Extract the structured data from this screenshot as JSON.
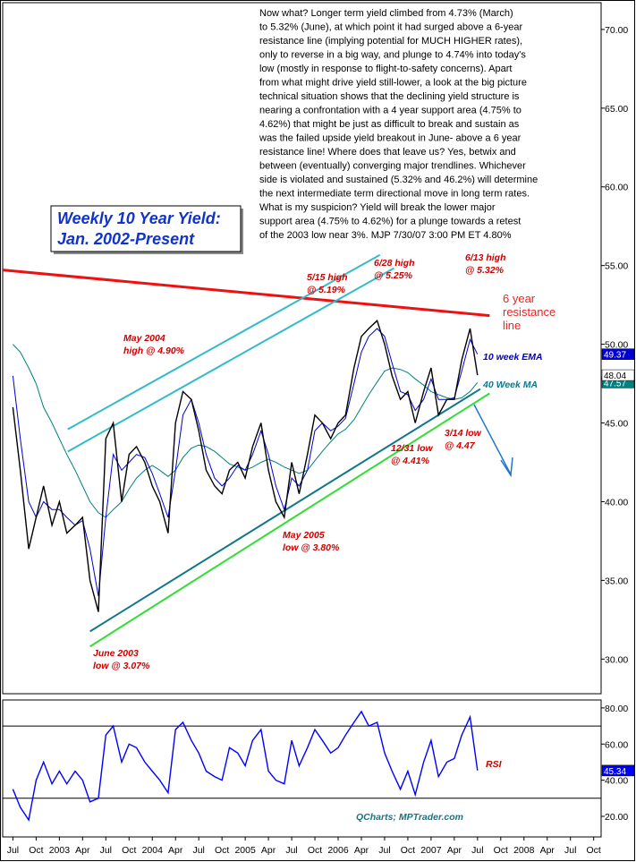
{
  "chart_data": [
    {
      "type": "line",
      "title_lines": [
        "Weekly 10 Year Yield:",
        "Jan. 2002-Present"
      ],
      "commentary": [
        "Now what?  Longer term yield climbed from 4.73% (March)",
        "to 5.32% (June), at which point it had surged above a 6-year",
        "resistance line (implying potential for MUCH HIGHER rates),",
        "only to reverse in a big way, and plunge to 4.74% into today's",
        "low (mostly in response to flight-to-safety concerns).  Apart",
        "from what might drive yield still-lower, a look at the big picture",
        "technical situation shows that the declining yield structure is",
        "nearing a confrontation with a 4 year support area (4.75% to",
        "4.62%) that might be just as difficult to break and sustain as",
        "was the failed upside yield breakout in June- above a 6 year",
        "resistance line!  Where does that leave us?  Yes, betwix and",
        "between (eventually) converging major trendlines. Whichever",
        "side is violated and sustained (5.32% and 46.2%) will determine",
        "the next intermediate term directional move in long term rates.",
        "What is my suspicion?  Yield will break the lower major",
        "support area (4.75% to 4.62%) for a plunge towards a retest",
        "of the 2003 low near 3%. MJP 7/30/07 3:00 PM ET 4.80%"
      ],
      "x": [
        2002.5,
        2002.58,
        2002.67,
        2002.75,
        2002.83,
        2002.92,
        2003.0,
        2003.08,
        2003.17,
        2003.25,
        2003.33,
        2003.42,
        2003.5,
        2003.58,
        2003.67,
        2003.75,
        2003.83,
        2003.92,
        2004.0,
        2004.08,
        2004.17,
        2004.25,
        2004.33,
        2004.42,
        2004.5,
        2004.58,
        2004.67,
        2004.75,
        2004.83,
        2004.92,
        2005.0,
        2005.08,
        2005.17,
        2005.25,
        2005.33,
        2005.42,
        2005.5,
        2005.58,
        2005.67,
        2005.75,
        2005.83,
        2005.92,
        2006.0,
        2006.08,
        2006.17,
        2006.25,
        2006.33,
        2006.42,
        2006.5,
        2006.58,
        2006.67,
        2006.75,
        2006.83,
        2006.92,
        2007.0,
        2007.08,
        2007.17,
        2007.25,
        2007.33,
        2007.42,
        2007.5
      ],
      "series": [
        {
          "color": "#000000",
          "values": [
            46,
            42,
            37,
            39,
            41,
            38.5,
            40,
            38,
            38.5,
            39,
            35,
            33,
            44,
            45,
            40,
            43,
            43.5,
            42.5,
            41,
            40,
            38,
            45,
            47,
            46.5,
            44.5,
            42,
            41,
            40.5,
            42,
            42.5,
            41.5,
            43.5,
            45,
            42,
            40,
            39,
            42.5,
            40.5,
            43,
            45.5,
            45,
            44,
            45,
            45.5,
            48.5,
            50.5,
            51,
            51.5,
            50,
            48,
            46.5,
            47,
            45,
            47,
            48.5,
            45.5,
            46.5,
            46.5,
            49,
            51,
            48.04
          ]
        },
        {
          "color": "#0000cc",
          "values": [
            48,
            44,
            40,
            39,
            40,
            39.5,
            39.5,
            39,
            38.5,
            38.8,
            37,
            34,
            39,
            43,
            42,
            42.5,
            43,
            42.8,
            41.8,
            40.5,
            39,
            42,
            45.5,
            46.5,
            45,
            43,
            41.5,
            41,
            41.5,
            42.3,
            42,
            43,
            44.5,
            43,
            41,
            39.5,
            41.5,
            41,
            42,
            44.5,
            45,
            44.5,
            44.8,
            45.3,
            47.5,
            49.5,
            50.5,
            51,
            50.5,
            48.8,
            47,
            46.8,
            45.8,
            46.5,
            47.8,
            46.5,
            46.5,
            46.6,
            48.3,
            50.3,
            49.37
          ]
        },
        {
          "color": "#008080",
          "values": [
            50,
            49.5,
            48.5,
            47.5,
            46,
            45,
            44,
            43,
            42,
            41,
            40,
            39.3,
            39,
            39.5,
            40,
            40.8,
            41.5,
            42,
            42.3,
            42,
            41.6,
            42,
            42.8,
            43.4,
            43.6,
            43.5,
            43.2,
            42.8,
            42.4,
            42.2,
            42,
            42.2,
            42.5,
            42.7,
            42.5,
            42.2,
            42,
            41.8,
            42,
            42.6,
            43.2,
            43.8,
            44.3,
            44.6,
            45.2,
            46,
            46.8,
            47.6,
            48.3,
            48.5,
            48.4,
            48.2,
            47.8,
            47.4,
            47,
            46.8,
            46.6,
            46.5,
            46.6,
            47,
            47.57
          ]
        }
      ],
      "trendlines": [
        {
          "color": "#ee1111",
          "points": [
            [
              2002.39,
              54.72
            ],
            [
              2007.63,
              51.82
            ]
          ]
        },
        {
          "color": "#33bbcc",
          "points": [
            [
              2003.09,
              44.6
            ],
            [
              2006.45,
              55.68
            ]
          ]
        },
        {
          "color": "#33bbcc",
          "points": [
            [
              2003.09,
              43.18
            ],
            [
              2006.6,
              54.83
            ]
          ]
        },
        {
          "color": "#117788",
          "points": [
            [
              2003.33,
              31.76
            ],
            [
              2007.53,
              47.16
            ]
          ]
        },
        {
          "color": "#33dd33",
          "points": [
            [
              2003.33,
              30.8
            ],
            [
              2007.63,
              46.88
            ]
          ]
        }
      ],
      "annotations": [
        {
          "color": "#cc0000",
          "lines": [
            "May 2004",
            "high @ 4.90%"
          ]
        },
        {
          "color": "#cc0000",
          "lines": [
            "5/15 high",
            "@ 5.19%"
          ]
        },
        {
          "color": "#cc0000",
          "lines": [
            "6/28 high",
            "@ 5.25%"
          ]
        },
        {
          "color": "#cc0000",
          "lines": [
            "6/13 high",
            "@ 5.32%"
          ]
        },
        {
          "color": "#ee2222",
          "lines": [
            "6 year",
            "resistance",
            "line"
          ]
        },
        {
          "color": "#0000cc",
          "lines": [
            "10 week EMA"
          ]
        },
        {
          "color": "#117788",
          "lines": [
            "40 Week MA"
          ]
        },
        {
          "color": "#cc0000",
          "lines": [
            "12/31 low",
            "@ 4.41%"
          ]
        },
        {
          "color": "#cc0000",
          "lines": [
            "3/14 low",
            "@ 4.47"
          ]
        },
        {
          "color": "#cc0000",
          "lines": [
            "May 2005",
            "low @ 3.80%"
          ]
        },
        {
          "color": "#cc0000",
          "lines": [
            "June 2003",
            "low @ 3.07%"
          ]
        }
      ],
      "xlim": [
        2002.39,
        2008.83
      ],
      "ylim": [
        27.8,
        71.7
      ],
      "yticks": [
        {
          "value": 30,
          "label": "30.00"
        },
        {
          "value": 35,
          "label": "35.00"
        },
        {
          "value": 40,
          "label": "40.00"
        },
        {
          "value": 45,
          "label": "45.00"
        },
        {
          "value": 50,
          "label": "50.00"
        },
        {
          "value": 55,
          "label": "55.00"
        },
        {
          "value": 60,
          "label": "60.00"
        },
        {
          "value": 65,
          "label": "65.00"
        },
        {
          "value": 70,
          "label": "70.00"
        }
      ]
    },
    {
      "type": "line",
      "label": "RSI",
      "source": "QCharts; MPTrader.com",
      "x": [
        2002.5,
        2002.58,
        2002.67,
        2002.75,
        2002.83,
        2002.92,
        2003.0,
        2003.08,
        2003.17,
        2003.25,
        2003.33,
        2003.42,
        2003.5,
        2003.58,
        2003.67,
        2003.75,
        2003.83,
        2003.92,
        2004.0,
        2004.08,
        2004.17,
        2004.25,
        2004.33,
        2004.42,
        2004.5,
        2004.58,
        2004.67,
        2004.75,
        2004.83,
        2004.92,
        2005.0,
        2005.08,
        2005.17,
        2005.25,
        2005.33,
        2005.42,
        2005.5,
        2005.58,
        2005.67,
        2005.75,
        2005.83,
        2005.92,
        2006.0,
        2006.08,
        2006.17,
        2006.25,
        2006.33,
        2006.42,
        2006.5,
        2006.58,
        2006.67,
        2006.75,
        2006.83,
        2006.92,
        2007.0,
        2007.08,
        2007.17,
        2007.25,
        2007.33,
        2007.42,
        2007.5
      ],
      "series": [
        {
          "color": "#0000ff",
          "values": [
            35,
            25,
            18,
            40,
            50,
            38,
            45,
            38,
            45,
            40,
            28,
            30,
            65,
            70,
            50,
            60,
            58,
            50,
            45,
            40,
            33,
            68,
            72,
            62,
            55,
            45,
            42,
            40,
            58,
            55,
            48,
            62,
            68,
            45,
            40,
            38,
            62,
            48,
            58,
            68,
            62,
            55,
            58,
            65,
            72,
            78,
            70,
            72,
            55,
            45,
            35,
            45,
            32,
            50,
            62,
            42,
            50,
            52,
            65,
            75,
            45.34
          ]
        }
      ],
      "hlines": [
        70,
        30
      ],
      "xlim": [
        2002.39,
        2008.83
      ],
      "ylim": [
        8.6,
        84.4
      ],
      "yticks": [
        {
          "value": 20,
          "label": "20.00"
        },
        {
          "value": 40,
          "label": "40.00"
        },
        {
          "value": 60,
          "label": "60.00"
        },
        {
          "value": 80,
          "label": "80.00"
        }
      ],
      "xticks": [
        {
          "value": 2002.5,
          "label": "Jul"
        },
        {
          "value": 2002.75,
          "label": "Oct"
        },
        {
          "value": 2003,
          "label": "2003"
        },
        {
          "value": 2003.25,
          "label": "Apr"
        },
        {
          "value": 2003.5,
          "label": "Jul"
        },
        {
          "value": 2003.75,
          "label": "Oct"
        },
        {
          "value": 2004,
          "label": "2004"
        },
        {
          "value": 2004.25,
          "label": "Apr"
        },
        {
          "value": 2004.5,
          "label": "Jul"
        },
        {
          "value": 2004.75,
          "label": "Oct"
        },
        {
          "value": 2005,
          "label": "2005"
        },
        {
          "value": 2005.25,
          "label": "Apr"
        },
        {
          "value": 2005.5,
          "label": "Jul"
        },
        {
          "value": 2005.75,
          "label": "Oct"
        },
        {
          "value": 2006,
          "label": "2006"
        },
        {
          "value": 2006.25,
          "label": "Apr"
        },
        {
          "value": 2006.5,
          "label": "Jul"
        },
        {
          "value": 2006.75,
          "label": "Oct"
        },
        {
          "value": 2007,
          "label": "2007"
        },
        {
          "value": 2007.25,
          "label": "Apr"
        },
        {
          "value": 2007.5,
          "label": "Jul"
        },
        {
          "value": 2007.75,
          "label": "Oct"
        },
        {
          "value": 2008,
          "label": "2008"
        },
        {
          "value": 2008.25,
          "label": "Apr"
        },
        {
          "value": 2008.5,
          "label": "Jul"
        },
        {
          "value": 2008.75,
          "label": "Oct"
        }
      ]
    }
  ]
}
